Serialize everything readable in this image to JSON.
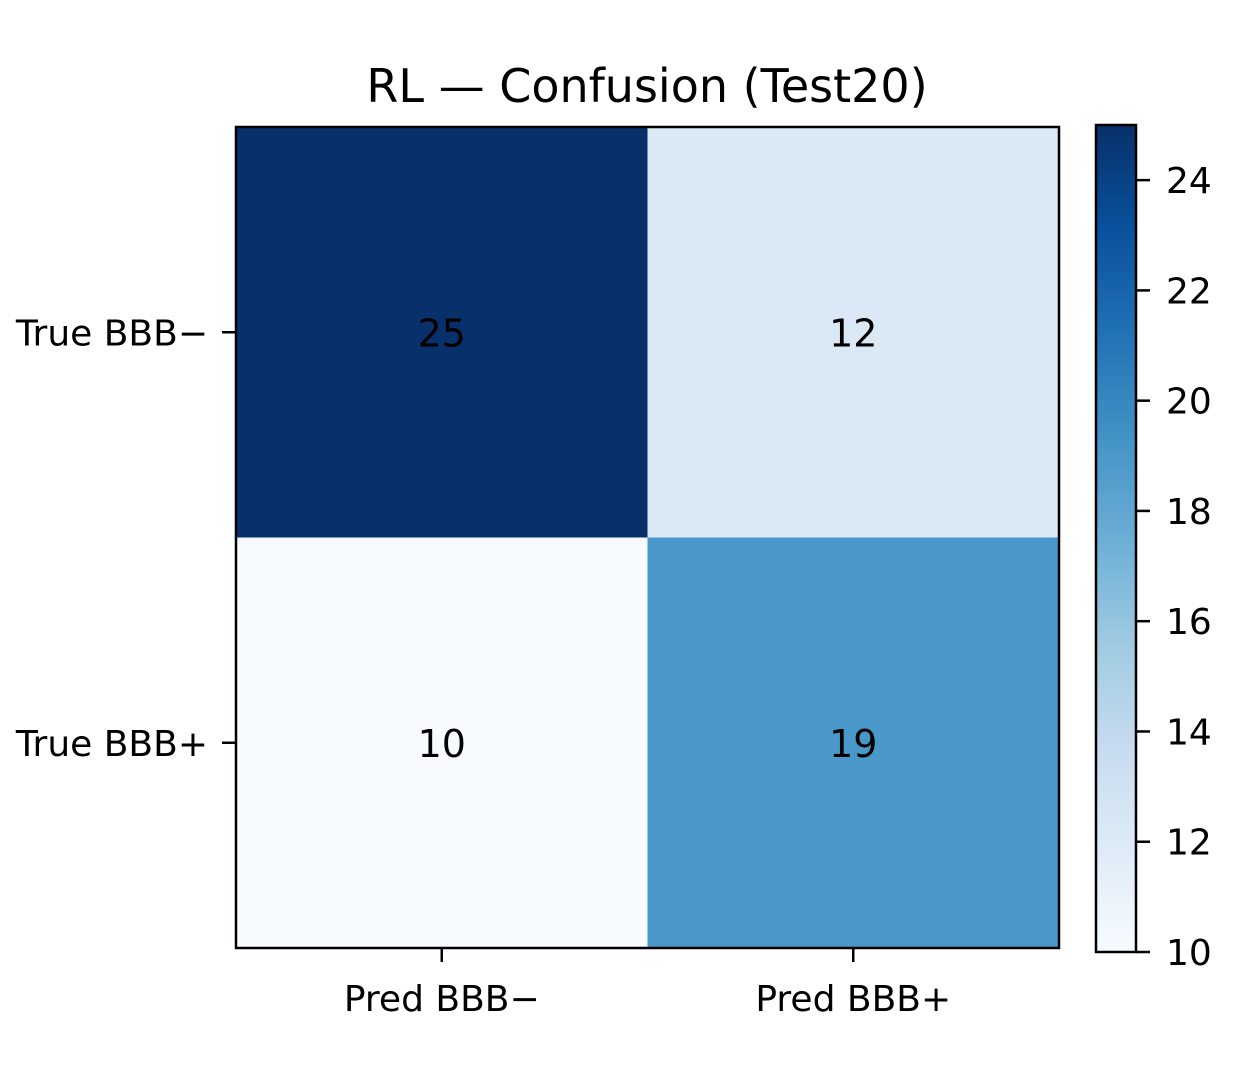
{
  "chart_data": {
    "type": "heatmap",
    "title": "RL — Confusion (Test20)",
    "x_categories": [
      "Pred BBB−",
      "Pred BBB+"
    ],
    "y_categories": [
      "True BBB−",
      "True BBB+"
    ],
    "values": [
      [
        25,
        12
      ],
      [
        10,
        19
      ]
    ],
    "colormap": "Blues",
    "color_range": [
      10,
      25
    ],
    "colorbar_ticks": [
      "10",
      "12",
      "14",
      "16",
      "18",
      "20",
      "22",
      "24"
    ],
    "cell_colors": {
      "0_0": "#08306b",
      "0_1": "#dbe9f6",
      "1_0": "#f7fbff",
      "1_1": "#4a98c9"
    },
    "grid": false
  }
}
